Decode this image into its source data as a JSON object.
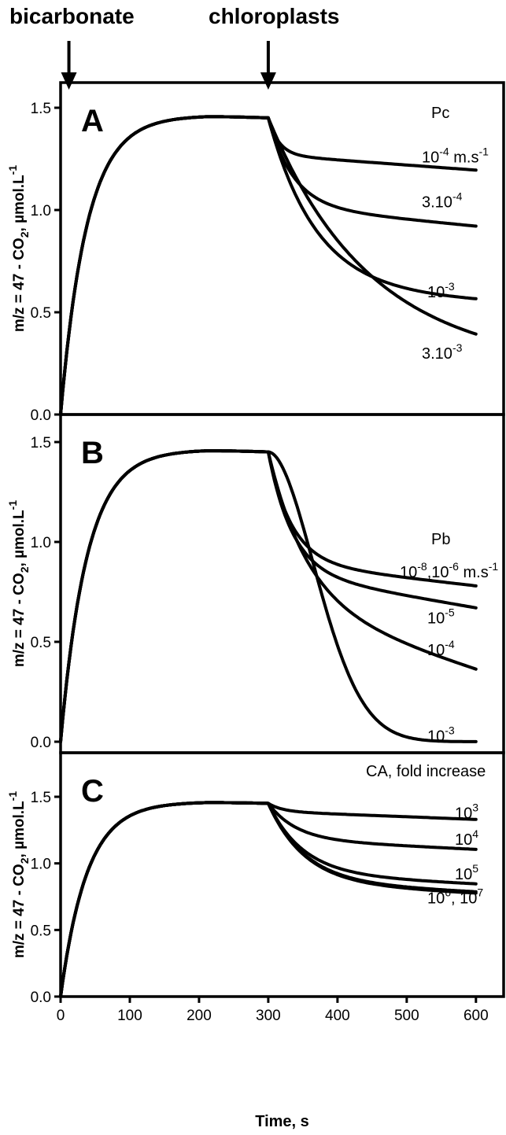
{
  "arrows": [
    {
      "label": "bicarbonate",
      "x": 12
    },
    {
      "label": "chloroplasts",
      "x": 300
    }
  ],
  "x_axis": {
    "label": "Time, s",
    "range": [
      0,
      640
    ],
    "ticks": [
      0,
      100,
      200,
      300,
      400,
      500,
      600
    ]
  },
  "chart_data": [
    {
      "type": "line",
      "panel": "A",
      "ylabel": "m/z = 47 - CO|2|, µmol.L|-1|",
      "xlabel": "",
      "xlim": [
        0,
        640
      ],
      "ylim": [
        0,
        1.6
      ],
      "yticks": [
        "0.0",
        "0.5",
        "1.0",
        "1.5"
      ],
      "yticks_values": [
        0,
        0.5,
        1.0,
        1.5
      ],
      "legend_title": "Pc",
      "series": [
        {
          "label": "10|-4| m.s|-1|",
          "label_x": 536,
          "label_y": 1.26,
          "final": 1.2,
          "k": 0.065,
          "c": 1.27,
          "slope": 0.00025
        },
        {
          "label": "3.10|-4|",
          "label_x": 536,
          "label_y": 1.04,
          "final": 0.94,
          "k": 0.028,
          "c": 1.02,
          "slope": 0.00033
        },
        {
          "label": "10|-3|",
          "label_x": 543,
          "label_y": 0.6,
          "final": 0.56,
          "k": 0.0145,
          "c": 0.6,
          "slope": 0.00015
        },
        {
          "label": "3.10|-3|",
          "label_x": 536,
          "label_y": 0.3,
          "final": 0.25,
          "k": 0.007,
          "c": 0.28,
          "slope": 0.0001
        }
      ]
    },
    {
      "type": "line",
      "panel": "B",
      "ylabel": "m/z = 47 - CO|2|, µmol.L|-1|",
      "xlabel": "",
      "xlim": [
        0,
        640
      ],
      "ylim": [
        0,
        1.6
      ],
      "yticks": [
        "0.0",
        "0.5",
        "1.0",
        "1.5"
      ],
      "yticks_values": [
        0,
        0.5,
        1.0,
        1.5
      ],
      "legend_title": "Pb",
      "series": [
        {
          "label": "10|-8|,10|-6| m.s|-1|",
          "label_x": 508,
          "label_y": 0.85,
          "final": 0.78,
          "k": 0.03,
          "c": 0.9,
          "slope": 0.0004
        },
        {
          "label": "10|-5|",
          "label_x": 543,
          "label_y": 0.62,
          "final": 0.72,
          "k": 0.029,
          "c": 0.85,
          "slope": 0.0006
        },
        {
          "label": "10|-4|",
          "label_x": 543,
          "label_y": 0.46,
          "final": 0.36,
          "k": 0.018,
          "c": 0.69,
          "slope": 0.0011
        },
        {
          "label": "10|-3|",
          "label_x": 543,
          "label_y": 0.03,
          "final": 0.0,
          "k": 0.012,
          "c": 0.0,
          "slope": 0.0
        }
      ]
    },
    {
      "type": "line",
      "panel": "C",
      "ylabel": "m/z = 47 - CO|2|, µmol.L|-1|",
      "xlabel": "Time, s",
      "xlim": [
        0,
        640
      ],
      "ylim": [
        0,
        1.6
      ],
      "yticks": [
        "0.0",
        "0.5",
        "1.0",
        "1.5"
      ],
      "yticks_values": [
        0,
        0.5,
        1.0,
        1.5
      ],
      "legend_title": "CA, fold increase",
      "series": [
        {
          "label": "10|3|",
          "label_x": 578,
          "label_y": 1.38,
          "final": 1.33,
          "k": 0.05,
          "c": 1.39,
          "slope": 0.0002
        },
        {
          "label": "10|4|",
          "label_x": 578,
          "label_y": 1.18,
          "final": 1.1,
          "k": 0.025,
          "c": 1.18,
          "slope": 0.00025
        },
        {
          "label": "10|5|",
          "label_x": 578,
          "label_y": 0.92,
          "final": 0.85,
          "k": 0.02,
          "c": 0.92,
          "slope": 0.00025
        },
        {
          "label": "10|6|, 10|7|",
          "label_x": 543,
          "label_y": 0.74,
          "final": 0.79,
          "k": 0.019,
          "c": 0.86,
          "slope": 0.00025
        },
        {
          "label": "",
          "label_x": 0,
          "label_y": 0,
          "final": 0.78,
          "k": 0.019,
          "c": 0.85,
          "slope": 0.00025
        }
      ]
    }
  ]
}
